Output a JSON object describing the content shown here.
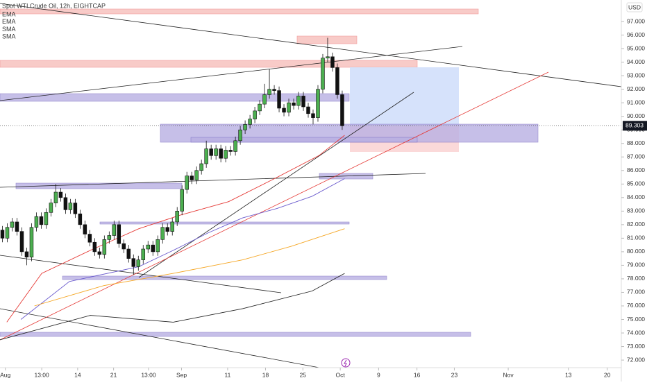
{
  "chart_data": {
    "type": "candlestick",
    "title": "Spot WTI Crude Oil, 12h, EIGHTCAP",
    "currency": "USD",
    "categories": [
      null,
      null,
      null,
      null,
      null,
      null,
      null,
      null,
      null,
      null,
      null,
      null,
      null,
      null,
      null,
      null,
      null,
      null,
      null,
      null,
      null,
      null,
      null,
      null,
      null,
      null,
      null,
      null,
      null,
      null,
      null,
      null,
      null,
      null,
      null,
      null,
      null,
      null,
      null,
      null,
      null,
      null,
      null,
      null,
      null,
      null,
      null,
      null,
      null,
      null,
      null,
      null,
      null,
      null,
      null,
      null,
      null,
      null,
      null,
      null,
      null,
      null,
      null,
      null,
      null,
      null,
      null,
      null,
      null,
      null,
      null
    ],
    "open": [
      81.6,
      81.0,
      81.8,
      82.2,
      81.5,
      80.0,
      79.6,
      81.8,
      82.6,
      82.0,
      82.9,
      83.6,
      84.4,
      84.0,
      83.1,
      83.6,
      82.8,
      82.0,
      81.3,
      80.7,
      80.0,
      79.8,
      80.9,
      81.2,
      82.0,
      80.6,
      80.2,
      79.5,
      78.9,
      79.4,
      80.2,
      80.5,
      80.0,
      80.9,
      81.8,
      81.5,
      82.2,
      83.0,
      84.6,
      85.6,
      85.3,
      86.0,
      86.5,
      87.6,
      87.1,
      87.6,
      86.9,
      87.5,
      87.4,
      88.2,
      89.0,
      89.4,
      89.8,
      90.4,
      90.9,
      91.6,
      92.0,
      91.9,
      90.6,
      90.3,
      91.0,
      90.8,
      91.5,
      90.7,
      90.2,
      89.9,
      92.0,
      94.3,
      94.4,
      93.6,
      91.6
    ],
    "high": [
      81.9,
      82.1,
      82.5,
      82.5,
      81.8,
      80.3,
      82.1,
      82.9,
      82.9,
      83.2,
      83.9,
      85.0,
      84.7,
      84.3,
      83.9,
      83.9,
      83.1,
      82.3,
      81.6,
      81.0,
      80.3,
      81.2,
      81.5,
      82.3,
      82.3,
      80.9,
      80.5,
      79.8,
      79.7,
      80.5,
      80.8,
      80.8,
      81.2,
      82.1,
      82.1,
      82.5,
      83.3,
      84.9,
      85.9,
      85.9,
      86.3,
      86.8,
      88.2,
      87.9,
      87.9,
      87.9,
      87.8,
      87.8,
      88.5,
      89.3,
      89.7,
      90.1,
      90.7,
      91.2,
      92.4,
      93.5,
      92.3,
      92.2,
      90.9,
      91.3,
      91.3,
      91.8,
      91.8,
      91.0,
      90.5,
      92.3,
      94.6,
      95.8,
      94.7,
      93.9,
      91.9
    ],
    "low": [
      80.7,
      80.7,
      81.5,
      81.2,
      79.7,
      79.0,
      79.3,
      81.5,
      81.7,
      81.7,
      82.6,
      83.3,
      83.7,
      82.8,
      82.8,
      82.5,
      81.7,
      81.0,
      80.4,
      79.7,
      79.5,
      79.5,
      80.6,
      80.9,
      80.3,
      79.9,
      79.2,
      78.3,
      78.6,
      79.1,
      79.9,
      79.7,
      79.7,
      80.6,
      81.2,
      81.2,
      81.9,
      82.7,
      84.3,
      85.0,
      85.0,
      85.7,
      86.2,
      86.8,
      86.8,
      86.6,
      86.6,
      87.1,
      87.1,
      87.9,
      88.7,
      89.1,
      89.5,
      90.1,
      90.6,
      91.3,
      91.6,
      90.3,
      90.0,
      90.0,
      90.5,
      90.5,
      90.4,
      89.9,
      89.4,
      89.6,
      91.7,
      94.0,
      93.3,
      91.3,
      89.0
    ],
    "close": [
      81.0,
      81.8,
      82.2,
      81.5,
      80.0,
      79.6,
      81.8,
      82.6,
      82.0,
      82.9,
      83.6,
      84.4,
      84.0,
      83.1,
      83.6,
      82.8,
      82.0,
      81.3,
      80.7,
      80.0,
      79.8,
      80.9,
      81.2,
      82.0,
      80.6,
      80.2,
      79.5,
      78.9,
      79.4,
      80.2,
      80.5,
      80.0,
      80.9,
      81.8,
      81.5,
      82.2,
      83.0,
      84.6,
      85.6,
      85.3,
      86.0,
      86.5,
      87.6,
      87.1,
      87.6,
      86.9,
      87.5,
      87.4,
      88.2,
      89.0,
      89.4,
      89.8,
      90.4,
      90.9,
      91.6,
      92.0,
      91.9,
      90.6,
      90.3,
      91.0,
      90.8,
      91.5,
      90.7,
      90.2,
      89.9,
      92.0,
      94.3,
      94.4,
      93.6,
      91.6,
      89.303
    ],
    "up_color": "#4caf50",
    "down_color": "#111111",
    "indicators": [
      {
        "name": "EMA",
        "color": "#e53935",
        "x": [
          0.9,
          8.1,
          18.1,
          28.1,
          36.6,
          46.6,
          56.6,
          65.2,
          70.5
        ],
        "values": [
          74.8,
          78.4,
          80.1,
          81.7,
          82.7,
          83.7,
          85.5,
          87.1,
          88.6
        ]
      },
      {
        "name": "EMA",
        "color": "#6a5acd",
        "x": [
          3.8,
          13.8,
          28.1,
          35.2,
          42.4,
          49.5,
          56.6,
          63.8,
          70.5
        ],
        "values": [
          75.0,
          77.8,
          78.9,
          80.1,
          81.4,
          82.5,
          83.2,
          84.1,
          85.4
        ]
      },
      {
        "name": "SMA",
        "color": "#f5a623",
        "x": [
          6.6,
          20.9,
          35.2,
          49.5,
          59.5,
          70.5
        ],
        "values": [
          76.0,
          77.5,
          78.4,
          79.4,
          80.4,
          81.7
        ]
      },
      {
        "name": "SMA",
        "color": "#222222",
        "x": [
          -0.5,
          18.1,
          35.2,
          49.5,
          63.8,
          70.5
        ],
        "values": [
          73.5,
          75.3,
          74.8,
          75.8,
          77.1,
          78.4
        ]
      }
    ],
    "xlim": [
      -0.5,
      127.5
    ],
    "xticks": [
      {
        "value": 0.6,
        "label": "Aug"
      },
      {
        "value": 8.1,
        "label": "13:00"
      },
      {
        "value": 15.5,
        "label": "14"
      },
      {
        "value": 22.9,
        "label": "21"
      },
      {
        "value": 30.1,
        "label": "13:00"
      },
      {
        "value": 36.9,
        "label": "Sep"
      },
      {
        "value": 46.4,
        "label": "11"
      },
      {
        "value": 54.2,
        "label": "18"
      },
      {
        "value": 61.9,
        "label": "25"
      },
      {
        "value": 69.6,
        "label": "Oct"
      },
      {
        "value": 77.5,
        "label": "9"
      },
      {
        "value": 85.4,
        "label": "16"
      },
      {
        "value": 93.1,
        "label": "23"
      },
      {
        "value": 104.2,
        "label": "Nov"
      },
      {
        "value": 116.6,
        "label": "13"
      },
      {
        "value": 124.6,
        "label": "20"
      }
    ],
    "ylim": [
      71.44,
      98.59
    ],
    "yticks": [
      {
        "value": 72,
        "label": "72.000"
      },
      {
        "value": 73,
        "label": "73.000"
      },
      {
        "value": 74,
        "label": "74.000"
      },
      {
        "value": 75,
        "label": "75.000"
      },
      {
        "value": 76,
        "label": "76.000"
      },
      {
        "value": 77,
        "label": "77.000"
      },
      {
        "value": 78,
        "label": "78.000"
      },
      {
        "value": 79,
        "label": "79.000"
      },
      {
        "value": 80,
        "label": "80.000"
      },
      {
        "value": 81,
        "label": "81.000"
      },
      {
        "value": 82,
        "label": "82.000"
      },
      {
        "value": 83,
        "label": "83.000"
      },
      {
        "value": 84,
        "label": "84.000"
      },
      {
        "value": 85,
        "label": "85.000"
      },
      {
        "value": 86,
        "label": "86.000"
      },
      {
        "value": 87,
        "label": "87.000"
      },
      {
        "value": 88,
        "label": "88.000"
      },
      {
        "value": 89,
        "label": "89.000"
      },
      {
        "value": 90,
        "label": "90.000"
      },
      {
        "value": 91,
        "label": "91.000"
      },
      {
        "value": 92,
        "label": "92.000"
      },
      {
        "value": 93,
        "label": "93.000"
      },
      {
        "value": 94,
        "label": "94.000"
      },
      {
        "value": 95,
        "label": "95.000"
      },
      {
        "value": 96,
        "label": "96.000"
      },
      {
        "value": 97,
        "label": "97.000"
      }
    ],
    "grid": false
  }
}
